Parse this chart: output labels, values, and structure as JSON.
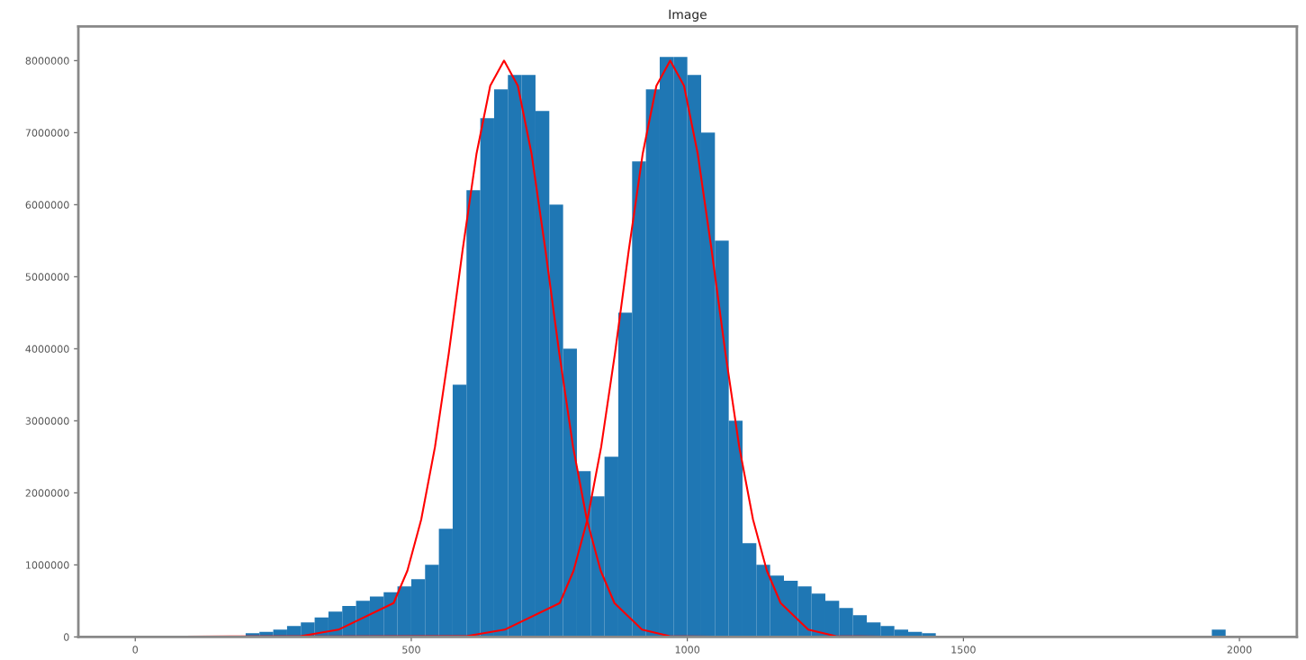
{
  "chart_data": {
    "type": "histogram",
    "title": "Image",
    "color": "#1f77b4",
    "bins": [
      0,
      25,
      50,
      75,
      100,
      125,
      150,
      175,
      200,
      225,
      250,
      275,
      300,
      325,
      350,
      375,
      400,
      425,
      450,
      475,
      500,
      525,
      550,
      575,
      600,
      625,
      650,
      675,
      700,
      725,
      750,
      775,
      800,
      825,
      850,
      875,
      900,
      925,
      950,
      975,
      1000,
      1025,
      1050,
      1075,
      1100,
      1125,
      1150,
      1175,
      1200,
      1225,
      1250,
      1275,
      1300,
      1325,
      1350,
      1375,
      1400,
      1425,
      1450,
      1475,
      1500,
      1525,
      1550,
      1575,
      1600,
      1625,
      1650,
      1675,
      1700,
      1725,
      1750,
      1775,
      1800,
      1825,
      1850,
      1875,
      1900,
      1925,
      1950,
      1975,
      2000,
      2025,
      2050
    ],
    "values": [
      0,
      0,
      0,
      0,
      0,
      0,
      null,
      null,
      50000,
      70000,
      100000,
      150000,
      200000,
      270000,
      350000,
      430000,
      500000,
      560000,
      620000,
      700000,
      800000,
      1000000,
      1500000,
      3500000,
      6200000,
      7200000,
      7600000,
      7800000,
      7800000,
      7300000,
      6000000,
      4000000,
      2300000,
      1950000,
      2500000,
      4500000,
      6600000,
      7600000,
      8050000,
      8050000,
      7800000,
      7000000,
      5500000,
      3000000,
      1300000,
      1000000,
      850000,
      780000,
      700000,
      600000,
      500000,
      400000,
      300000,
      200000,
      150000,
      100000,
      70000,
      50000,
      null,
      null,
      10000,
      0,
      0,
      0,
      0,
      0,
      0,
      0,
      0,
      0,
      0,
      0,
      0,
      0,
      0,
      0,
      0,
      0,
      100000,
      0,
      0,
      0
    ],
    "series": [
      {
        "type": "line",
        "color": "#ff0000",
        "x": [
          0,
          300,
          368,
          468,
          493,
          518,
          543,
          568,
          593,
          618,
          643,
          668,
          693,
          718,
          743,
          768,
          793,
          818,
          843,
          868,
          918,
          968,
          1100,
          2044
        ],
        "values": [
          0,
          10000,
          100000,
          470000,
          920000,
          1630000,
          2640000,
          3940000,
          5370000,
          6700000,
          7650000,
          8000000,
          7650000,
          6700000,
          5370000,
          3940000,
          2640000,
          1630000,
          920000,
          470000,
          100000,
          10000,
          0,
          0
        ]
      },
      {
        "type": "line",
        "color": "#ff0000",
        "x": [
          0,
          600,
          669,
          769,
          794,
          819,
          844,
          869,
          894,
          919,
          944,
          969,
          994,
          1019,
          1044,
          1069,
          1094,
          1119,
          1144,
          1169,
          1219,
          1269,
          1400,
          2044
        ],
        "values": [
          0,
          10000,
          100000,
          470000,
          920000,
          1630000,
          2640000,
          3940000,
          5370000,
          6700000,
          7650000,
          8000000,
          7650000,
          6700000,
          5370000,
          3940000,
          2640000,
          1630000,
          920000,
          470000,
          100000,
          10000,
          0,
          0
        ]
      }
    ],
    "xlim": [
      -103,
      2104
    ],
    "ylim": [
      0,
      8475000
    ],
    "xticks": [
      0,
      500,
      1000,
      1500,
      2000
    ],
    "yticks": [
      0,
      1000000,
      2000000,
      3000000,
      4000000,
      5000000,
      6000000,
      7000000,
      8000000
    ],
    "grid": false
  }
}
